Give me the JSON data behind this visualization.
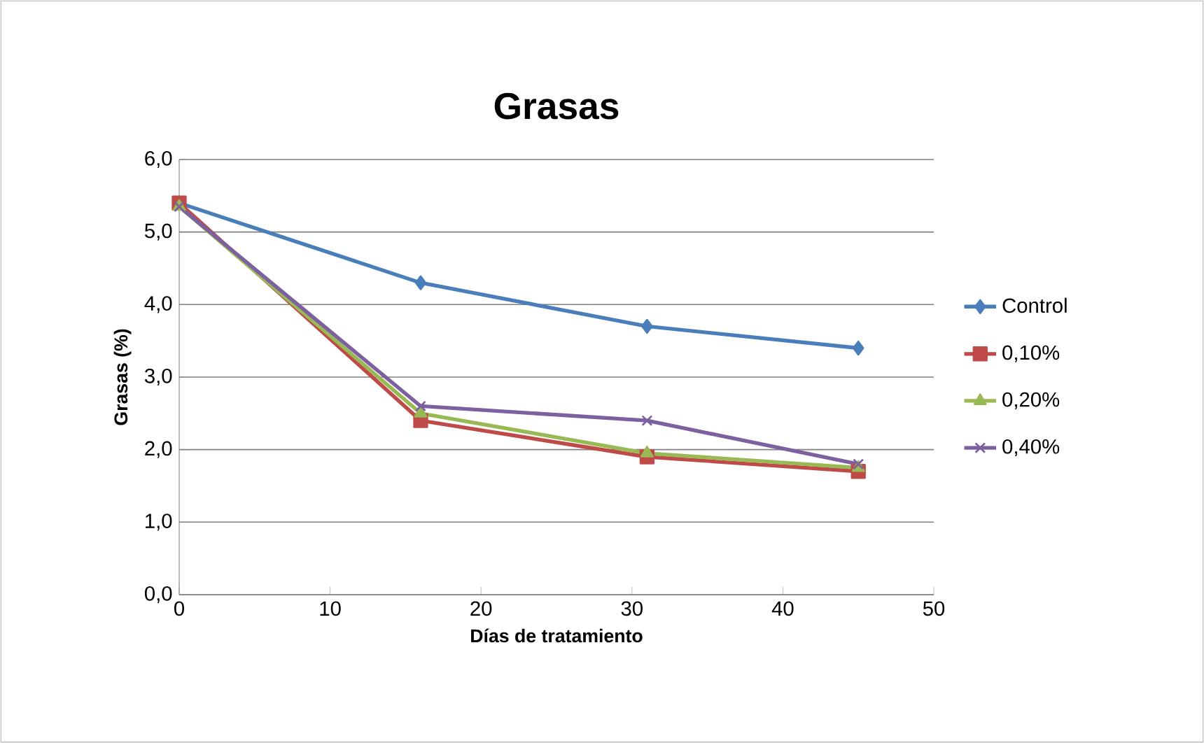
{
  "chart_data": {
    "type": "line",
    "title": "Grasas",
    "xlabel": "Días de tratamiento",
    "ylabel": "Grasas  (%)",
    "x": [
      0,
      16,
      31,
      45
    ],
    "series": [
      {
        "name": "Control",
        "color": "#4a7ebb",
        "marker": "diamond",
        "values": [
          5.4,
          4.3,
          3.7,
          3.4
        ]
      },
      {
        "name": "0,10%",
        "color": "#be4b48",
        "marker": "square",
        "values": [
          5.4,
          2.4,
          1.9,
          1.7
        ]
      },
      {
        "name": "0,20%",
        "color": "#98b954",
        "marker": "triangle",
        "values": [
          5.35,
          2.5,
          1.95,
          1.75
        ]
      },
      {
        "name": "0,40%",
        "color": "#7d60a0",
        "marker": "cross",
        "values": [
          5.35,
          2.6,
          2.4,
          1.8
        ]
      }
    ],
    "xlim": [
      0,
      50
    ],
    "xticks": [
      0,
      10,
      20,
      30,
      40,
      50
    ],
    "ylim": [
      0,
      6
    ],
    "yticks": [
      {
        "value": 0,
        "label": "0,0"
      },
      {
        "value": 1,
        "label": "1,0"
      },
      {
        "value": 2,
        "label": "2,0"
      },
      {
        "value": 3,
        "label": "3,0"
      },
      {
        "value": 4,
        "label": "4,0"
      },
      {
        "value": 5,
        "label": "5,0"
      },
      {
        "value": 6,
        "label": "6,0"
      }
    ],
    "grid": "y",
    "legend": "right",
    "line_style": "solid"
  }
}
